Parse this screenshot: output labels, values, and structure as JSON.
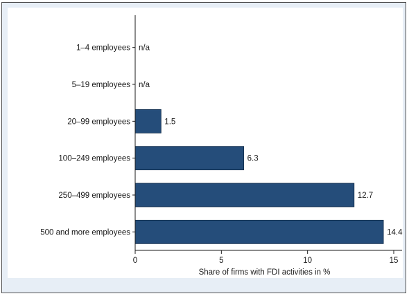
{
  "chart_data": {
    "type": "bar",
    "orientation": "horizontal",
    "categories": [
      "1–4 employees",
      "5–19 employees",
      "20–99 employees",
      "100–249 employees",
      "250–499 employees",
      "500 and more employees"
    ],
    "values": [
      null,
      null,
      1.5,
      6.3,
      12.7,
      14.4
    ],
    "value_labels": [
      "n/a",
      "n/a",
      "1.5",
      "6.3",
      "12.7",
      "14.4"
    ],
    "xlabel": "Share of firms with FDI activities in %",
    "ylabel": "",
    "xlim": [
      0,
      15
    ],
    "xticks": [
      0,
      5,
      10,
      15
    ],
    "grid": false,
    "bar_color": "#254d7a",
    "background_color": "#e7eef6",
    "plot_background": "#ffffff"
  }
}
